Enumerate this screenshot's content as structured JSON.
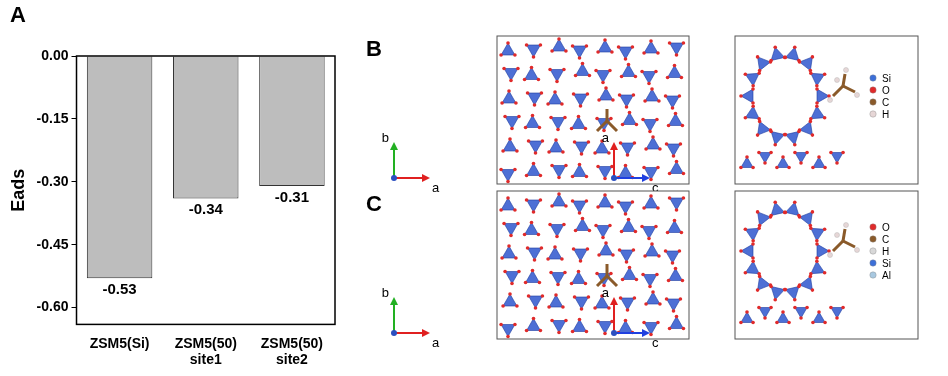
{
  "chart_data": {
    "type": "bar",
    "title": "A",
    "y_label": "Eads",
    "categories": [
      "ZSM5(Si)",
      "ZSM5(50)\nsite1",
      "ZSM5(50)\nsite2"
    ],
    "values": [
      -0.53,
      -0.34,
      -0.31
    ],
    "color": "#bdbdbd",
    "ylim": [
      -0.64,
      0
    ],
    "yticks": [
      {
        "value": -0.6,
        "label": "-0.60"
      },
      {
        "value": -0.45,
        "label": "-0.45"
      },
      {
        "value": -0.3,
        "label": "-0.30"
      },
      -0.15,
      {
        "value": 0,
        "label": "0.00"
      }
    ],
    "grid": false,
    "data_labels": true
  },
  "panels": [
    {
      "label": "B",
      "left_axes": {
        "up": {
          "text": "b",
          "color": "#22b022"
        },
        "right": {
          "text": "a",
          "color": "#e02020"
        }
      },
      "right_axes": {
        "up": {
          "text": "a",
          "color": "#e02020"
        },
        "right": {
          "text": "c",
          "color": "#2040e0"
        }
      },
      "legend": [
        {
          "name": "Si",
          "color": "#3c6fd8"
        },
        {
          "name": "O",
          "color": "#e02a2a"
        },
        {
          "name": "C",
          "color": "#8a5a2a"
        },
        {
          "name": "H",
          "color": "#e6d6d6"
        }
      ]
    },
    {
      "label": "C",
      "left_axes": {
        "up": {
          "text": "b",
          "color": "#22b022"
        },
        "right": {
          "text": "a",
          "color": "#e02020"
        }
      },
      "right_axes": {
        "up": {
          "text": "a",
          "color": "#e02020"
        },
        "right": {
          "text": "c",
          "color": "#2040e0"
        }
      },
      "legend": [
        {
          "name": "O",
          "color": "#e02a2a"
        },
        {
          "name": "C",
          "color": "#8a5a2a"
        },
        {
          "name": "H",
          "color": "#d8d8d8"
        },
        {
          "name": "Si",
          "color": "#3c6fd8"
        },
        {
          "name": "Al",
          "color": "#a8c8e0"
        }
      ]
    }
  ]
}
